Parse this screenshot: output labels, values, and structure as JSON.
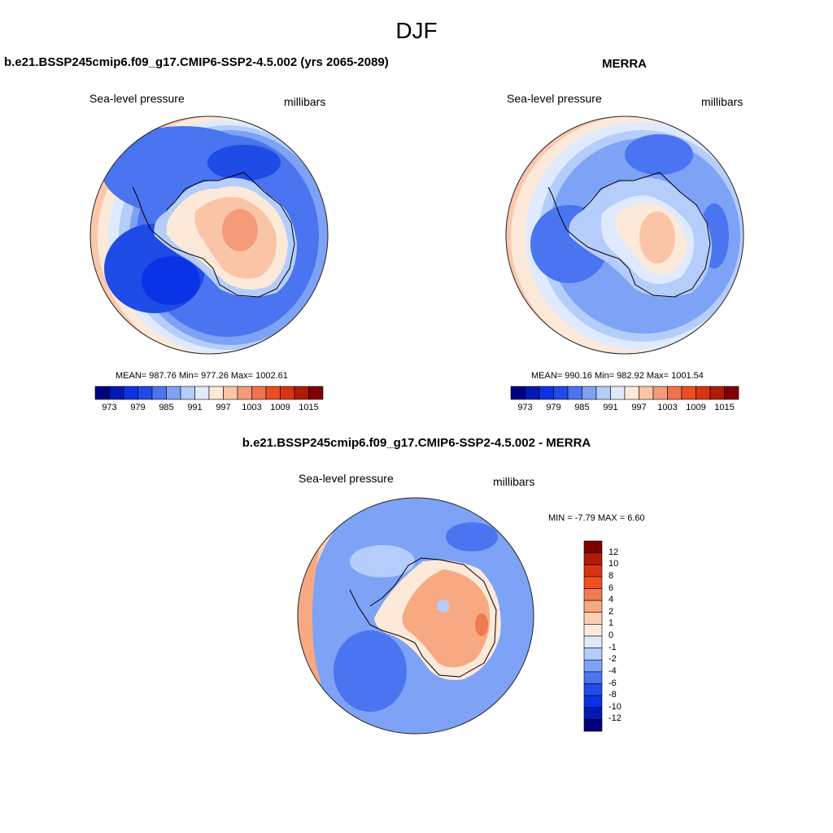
{
  "figure": {
    "season": "DJF"
  },
  "panels": [
    {
      "title": "b.e21.BSSP245cmip6.f09_g17.CMIP6-SSP2-4.5.002 (yrs 2065-2089)",
      "left_label": "Sea-level pressure",
      "right_label": "millibars",
      "stats": "MEAN= 987.76  Min= 977.26  Max= 1002.61",
      "mean": 987.76,
      "min": 977.26,
      "max": 1002.61
    },
    {
      "title": "MERRA",
      "left_label": "Sea-level pressure",
      "right_label": "millibars",
      "stats": "MEAN= 990.16  Min= 982.92  Max= 1001.54",
      "mean": 990.16,
      "min": 982.92,
      "max": 1001.54
    },
    {
      "title": "b.e21.BSSP245cmip6.f09_g17.CMIP6-SSP2-4.5.002 - MERRA",
      "left_label": "Sea-level pressure",
      "right_label": "millibars",
      "stats": "MIN =  -7.79 MAX =   6.60",
      "min": -7.79,
      "max": 6.6
    }
  ],
  "abs_colorbar": {
    "tick_labels": [
      "973",
      "979",
      "985",
      "991",
      "997",
      "1003",
      "1009",
      "1015"
    ],
    "colors": [
      "#00007f",
      "#0019b3",
      "#0a32e6",
      "#1f4be6",
      "#4a74f0",
      "#7ea2f5",
      "#b4cdfa",
      "#dfeaff",
      "#fde9d9",
      "#fac5a7",
      "#f49c79",
      "#f0724e",
      "#ee4d1f",
      "#d93311",
      "#b11a04",
      "#7f0000"
    ]
  },
  "diff_colorbar": {
    "tick_labels": [
      "12",
      "10",
      "8",
      "6",
      "4",
      "2",
      "1",
      "0",
      "-1",
      "-2",
      "-4",
      "-6",
      "-8",
      "-10",
      "-12"
    ],
    "colors": [
      "#7f0000",
      "#b11a04",
      "#d93311",
      "#f0501f",
      "#f07a52",
      "#f8a982",
      "#fbcfb2",
      "#fde9d9",
      "#dfeaff",
      "#b4cdfa",
      "#7ea2f5",
      "#4a74f0",
      "#1f4be6",
      "#0a32e6",
      "#0019b3",
      "#00007f"
    ]
  },
  "map_colors": {
    "coast": "#000000",
    "outline": "#222222"
  }
}
